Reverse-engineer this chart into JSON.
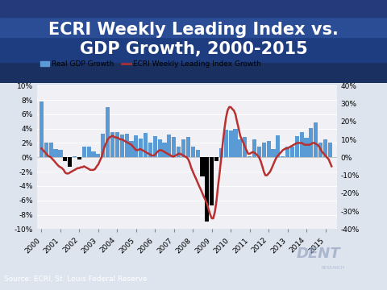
{
  "title": "ECRI Weekly Leading Index vs.\nGDP Growth, 2000-2015",
  "title_color": "white",
  "source_text": "Source: ECRI, St. Louis Federal Reserve",
  "source_bg": "#1a1a2e",
  "legend_gdp": "Real GDP Growth",
  "legend_ecri": "ECRI Weekly Leading Index Growth",
  "bar_color_pos": "#5b9bd5",
  "bar_color_neg": "#000000",
  "line_color": "#b83030",
  "plot_bg": "#f0f0f5",
  "outer_bg": "#dde4ee",
  "ylim_left": [
    -10,
    10
  ],
  "ylim_right": [
    -40,
    40
  ],
  "yticks_left": [
    -10,
    -8,
    -6,
    -4,
    -2,
    0,
    2,
    4,
    6,
    8,
    10
  ],
  "yticks_right": [
    -40,
    -30,
    -20,
    -10,
    0,
    10,
    20,
    30,
    40
  ],
  "gdp_x": [
    2000.0,
    2000.25,
    2000.5,
    2000.75,
    2001.0,
    2001.25,
    2001.5,
    2001.75,
    2002.0,
    2002.25,
    2002.5,
    2002.75,
    2003.0,
    2003.25,
    2003.5,
    2003.75,
    2004.0,
    2004.25,
    2004.5,
    2004.75,
    2005.0,
    2005.25,
    2005.5,
    2005.75,
    2006.0,
    2006.25,
    2006.5,
    2006.75,
    2007.0,
    2007.25,
    2007.5,
    2007.75,
    2008.0,
    2008.25,
    2008.5,
    2008.75,
    2009.0,
    2009.25,
    2009.5,
    2009.75,
    2010.0,
    2010.25,
    2010.5,
    2010.75,
    2011.0,
    2011.25,
    2011.5,
    2011.75,
    2012.0,
    2012.25,
    2012.5,
    2012.75,
    2013.0,
    2013.25,
    2013.5,
    2013.75,
    2014.0,
    2014.25,
    2014.5,
    2014.75,
    2015.0,
    2015.25
  ],
  "gdp_y": [
    7.8,
    2.0,
    2.0,
    1.2,
    1.0,
    -0.5,
    -1.3,
    0.2,
    -0.3,
    1.5,
    1.5,
    0.8,
    0.5,
    3.3,
    7.0,
    3.5,
    3.5,
    3.2,
    3.3,
    2.3,
    3.1,
    2.6,
    3.4,
    2.0,
    3.0,
    2.5,
    2.0,
    3.2,
    2.8,
    1.5,
    2.5,
    2.8,
    1.5,
    1.0,
    -2.7,
    -8.9,
    -6.7,
    -0.5,
    1.3,
    3.9,
    3.7,
    4.0,
    2.5,
    2.8,
    0.1,
    2.5,
    1.5,
    2.0,
    2.3,
    1.2,
    3.1,
    0.1,
    1.5,
    1.5,
    3.0,
    3.5,
    2.7,
    4.1,
    4.9,
    2.1,
    2.5,
    2.0
  ],
  "ecri_x": [
    2000.0,
    2000.08,
    2000.17,
    2000.25,
    2000.33,
    2000.42,
    2000.5,
    2000.58,
    2000.67,
    2000.75,
    2000.83,
    2000.92,
    2001.0,
    2001.08,
    2001.17,
    2001.25,
    2001.33,
    2001.42,
    2001.5,
    2001.58,
    2001.67,
    2001.75,
    2001.83,
    2001.92,
    2002.0,
    2002.08,
    2002.17,
    2002.25,
    2002.33,
    2002.42,
    2002.5,
    2002.58,
    2002.67,
    2002.75,
    2002.83,
    2002.92,
    2003.0,
    2003.08,
    2003.17,
    2003.25,
    2003.33,
    2003.42,
    2003.5,
    2003.58,
    2003.67,
    2003.75,
    2003.83,
    2003.92,
    2004.0,
    2004.08,
    2004.17,
    2004.25,
    2004.33,
    2004.42,
    2004.5,
    2004.58,
    2004.67,
    2004.75,
    2004.83,
    2004.92,
    2005.0,
    2005.08,
    2005.17,
    2005.25,
    2005.33,
    2005.42,
    2005.5,
    2005.58,
    2005.67,
    2005.75,
    2005.83,
    2005.92,
    2006.0,
    2006.08,
    2006.17,
    2006.25,
    2006.33,
    2006.42,
    2006.5,
    2006.58,
    2006.67,
    2006.75,
    2006.83,
    2006.92,
    2007.0,
    2007.08,
    2007.17,
    2007.25,
    2007.33,
    2007.42,
    2007.5,
    2007.58,
    2007.67,
    2007.75,
    2007.83,
    2007.92,
    2008.0,
    2008.08,
    2008.17,
    2008.25,
    2008.33,
    2008.42,
    2008.5,
    2008.58,
    2008.67,
    2008.75,
    2008.83,
    2008.92,
    2009.0,
    2009.08,
    2009.17,
    2009.25,
    2009.33,
    2009.42,
    2009.5,
    2009.58,
    2009.67,
    2009.75,
    2009.83,
    2009.92,
    2010.0,
    2010.08,
    2010.17,
    2010.25,
    2010.33,
    2010.42,
    2010.5,
    2010.58,
    2010.67,
    2010.75,
    2010.83,
    2010.92,
    2011.0,
    2011.08,
    2011.17,
    2011.25,
    2011.33,
    2011.42,
    2011.5,
    2011.58,
    2011.67,
    2011.75,
    2011.83,
    2011.92,
    2012.0,
    2012.08,
    2012.17,
    2012.25,
    2012.33,
    2012.42,
    2012.5,
    2012.58,
    2012.67,
    2012.75,
    2012.83,
    2012.92,
    2013.0,
    2013.08,
    2013.17,
    2013.25,
    2013.33,
    2013.42,
    2013.5,
    2013.58,
    2013.67,
    2013.75,
    2013.83,
    2013.92,
    2014.0,
    2014.08,
    2014.17,
    2014.25,
    2014.33,
    2014.42,
    2014.5,
    2014.58,
    2014.67,
    2014.75,
    2014.83,
    2014.92,
    2015.0,
    2015.08,
    2015.17,
    2015.25,
    2015.33
  ],
  "ecri_y": [
    5.0,
    4.0,
    3.0,
    2.0,
    1.0,
    0.5,
    0.0,
    -1.0,
    -2.0,
    -3.0,
    -4.0,
    -5.0,
    -5.5,
    -6.0,
    -7.0,
    -8.5,
    -9.0,
    -9.0,
    -8.5,
    -8.0,
    -7.5,
    -7.0,
    -6.5,
    -6.0,
    -6.0,
    -5.5,
    -5.5,
    -5.0,
    -5.5,
    -6.0,
    -6.5,
    -7.0,
    -7.0,
    -7.0,
    -6.5,
    -5.0,
    -4.0,
    -2.0,
    0.0,
    3.0,
    6.0,
    8.0,
    10.0,
    11.0,
    11.5,
    12.0,
    11.5,
    11.0,
    11.0,
    10.5,
    10.0,
    10.0,
    9.5,
    9.0,
    8.5,
    8.0,
    7.5,
    7.0,
    6.0,
    5.0,
    4.0,
    4.0,
    4.5,
    4.5,
    4.0,
    3.5,
    3.0,
    2.5,
    2.0,
    1.5,
    1.0,
    1.0,
    1.5,
    2.5,
    3.5,
    4.0,
    4.0,
    3.5,
    3.0,
    2.5,
    2.0,
    1.5,
    1.0,
    0.5,
    0.5,
    1.0,
    1.5,
    2.0,
    2.0,
    1.5,
    1.0,
    0.5,
    0.0,
    -1.0,
    -3.0,
    -6.0,
    -8.0,
    -10.0,
    -12.0,
    -14.0,
    -16.0,
    -18.0,
    -20.0,
    -22.0,
    -24.0,
    -26.0,
    -29.0,
    -32.0,
    -34.0,
    -34.0,
    -30.0,
    -24.0,
    -16.0,
    -8.0,
    0.0,
    8.0,
    16.0,
    22.0,
    26.0,
    28.0,
    28.0,
    27.0,
    26.0,
    24.0,
    20.0,
    16.0,
    12.0,
    10.0,
    8.0,
    6.0,
    4.0,
    2.0,
    2.0,
    2.5,
    3.0,
    2.5,
    2.0,
    1.0,
    0.0,
    -2.0,
    -5.0,
    -8.0,
    -10.0,
    -10.0,
    -9.0,
    -8.0,
    -6.0,
    -4.0,
    -2.0,
    0.0,
    1.0,
    2.0,
    3.0,
    4.0,
    4.5,
    5.0,
    5.0,
    5.5,
    6.0,
    6.5,
    7.0,
    7.5,
    8.0,
    8.0,
    8.0,
    8.0,
    7.5,
    7.0,
    7.0,
    7.0,
    7.0,
    7.5,
    8.0,
    8.0,
    7.5,
    7.0,
    6.0,
    4.5,
    3.0,
    2.0,
    1.0,
    0.0,
    -1.0,
    -3.0,
    -5.0
  ]
}
